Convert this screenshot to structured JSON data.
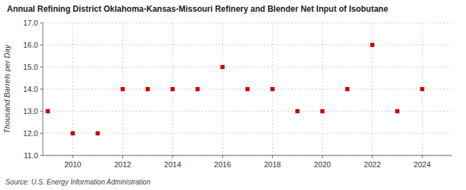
{
  "chart_data": {
    "type": "scatter",
    "title": "Annual Refining District Oklahoma-Kansas-Missouri Refinery and Blender Net Input of Isobutane",
    "y_label": "Thousand Barrels per Day",
    "source": "Source: U.S. Energy Information Administration",
    "x": [
      2009,
      2010,
      2011,
      2012,
      2013,
      2014,
      2015,
      2016,
      2017,
      2018,
      2019,
      2020,
      2021,
      2022,
      2023,
      2024
    ],
    "values": [
      13.0,
      12.0,
      12.0,
      14.0,
      14.0,
      14.0,
      14.0,
      15.0,
      14.0,
      14.0,
      13.0,
      13.0,
      14.0,
      16.0,
      13.0,
      14.0
    ],
    "color": "#cc0000",
    "marker": "square",
    "xlim": [
      2008.8,
      2025.2
    ],
    "xticks": [
      2010,
      2012,
      2014,
      2016,
      2018,
      2020,
      2022,
      2024
    ],
    "ylim": [
      11.0,
      17.0
    ],
    "yticks": [
      {
        "value": 11.0,
        "label": "11.0"
      },
      {
        "value": 12.0,
        "label": "12.0"
      },
      {
        "value": 13.0,
        "label": "13.0"
      },
      {
        "value": 14.0,
        "label": "14.0"
      },
      {
        "value": 15.0,
        "label": "15.0"
      },
      {
        "value": 16.0,
        "label": "16.0"
      },
      {
        "value": 17.0,
        "label": "17.0"
      }
    ],
    "grid": true
  }
}
